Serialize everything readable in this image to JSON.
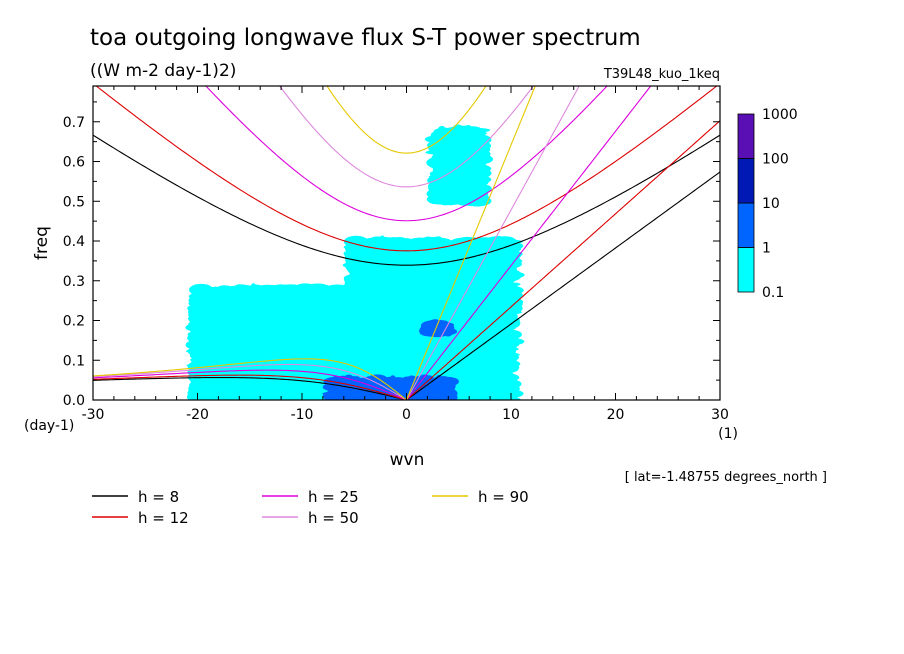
{
  "chart_data": {
    "type": "heatmap",
    "title": "toa outgoing longwave flux S-T power spectrum",
    "subtitle": "((W m-2 day-1)2)",
    "experiment": "T39L48_kuo_1keq",
    "xlabel": "wvn",
    "ylabel": "freq",
    "x_unit": "(1)",
    "y_unit": "(day-1)",
    "xlim": [
      -30,
      30
    ],
    "ylim": [
      0,
      0.79
    ],
    "x_ticks": [
      "-30",
      "-20",
      "-10",
      "0",
      "10",
      "20",
      "30"
    ],
    "y_ticks": [
      "0.0",
      "0.1",
      "0.2",
      "0.3",
      "0.4",
      "0.5",
      "0.6",
      "0.7"
    ],
    "x_tick_values": [
      -30,
      -20,
      -10,
      0,
      10,
      20,
      30
    ],
    "y_tick_values": [
      0.0,
      0.1,
      0.2,
      0.3,
      0.4,
      0.5,
      0.6,
      0.7
    ],
    "annotation": "[ lat=-1.48755 degrees_north ]",
    "colorbar": {
      "labels": [
        "0.1",
        "1",
        "10",
        "100",
        "1000"
      ],
      "colors": [
        "#00ffff",
        "#0064ff",
        "#0019b4",
        "#5a0fb4"
      ]
    },
    "dispersion_curves": [
      {
        "label": "h = 8",
        "h": 8,
        "color": "#000000"
      },
      {
        "label": "h = 12",
        "h": 12,
        "color": "#dd0000"
      },
      {
        "label": "h = 25",
        "h": 25,
        "color": "#dd00dd"
      },
      {
        "label": "h = 50",
        "h": 50,
        "color": "#dd88dd"
      },
      {
        "label": "h = 90",
        "h": 90,
        "color": "#e6c800"
      }
    ],
    "power_regions": [
      {
        "level": "0.1-1",
        "x": [
          -20,
          10
        ],
        "y": [
          0.0,
          0.28
        ]
      },
      {
        "level": "0.1-1",
        "x": [
          -5,
          10
        ],
        "y": [
          0.22,
          0.4
        ]
      },
      {
        "level": "0.1-1",
        "x": [
          3,
          7
        ],
        "y": [
          0.5,
          0.68
        ]
      },
      {
        "level": "1-10",
        "x": [
          -7,
          4
        ],
        "y": [
          0.0,
          0.05
        ]
      },
      {
        "level": "1-10",
        "x": [
          2,
          4
        ],
        "y": [
          0.17,
          0.19
        ]
      }
    ]
  }
}
